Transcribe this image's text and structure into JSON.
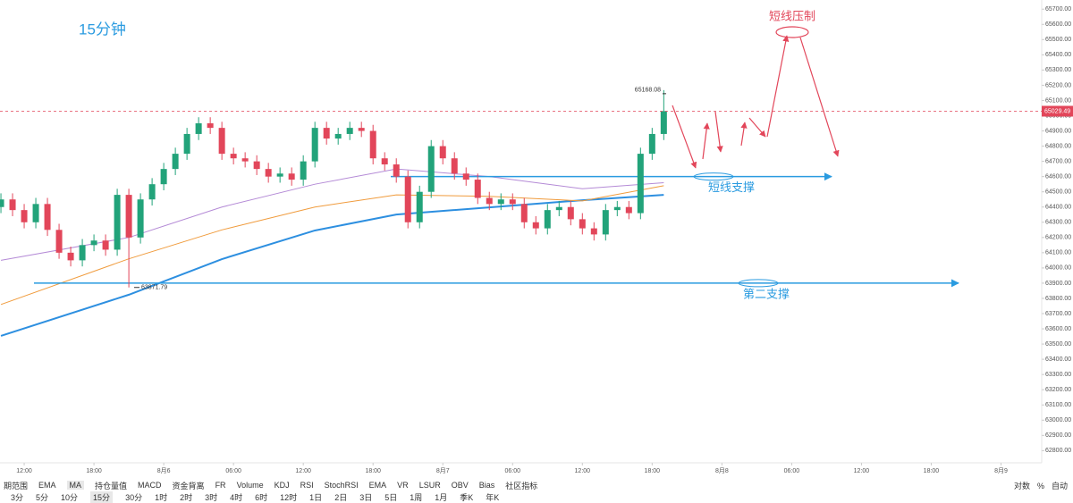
{
  "chart_data": {
    "type": "candlestick",
    "title": "15分钟",
    "x": [
      -2,
      -1,
      0,
      1,
      2,
      3,
      4,
      5,
      6,
      7,
      8,
      9,
      10,
      11,
      12,
      13,
      14,
      15,
      16,
      17,
      18,
      19,
      20,
      21,
      22,
      23,
      24,
      25,
      26,
      27,
      28,
      29,
      30,
      31,
      32,
      33,
      34,
      35,
      36,
      37,
      38,
      39,
      40,
      41,
      42,
      43,
      44,
      45,
      46,
      47,
      48,
      49,
      50,
      51,
      52,
      53,
      54,
      55
    ],
    "open": [
      64400,
      64450,
      64380,
      64300,
      64420,
      64250,
      64100,
      64050,
      64150,
      64180,
      64120,
      64480,
      64200,
      64450,
      64550,
      64650,
      64750,
      64880,
      64950,
      64920,
      64750,
      64720,
      64700,
      64650,
      64600,
      64620,
      64580,
      64700,
      64920,
      64850,
      64880,
      64920,
      64900,
      64720,
      64680,
      64600,
      64300,
      64500,
      64800,
      64720,
      64620,
      64580,
      64460,
      64420,
      64450,
      64420,
      64300,
      64260,
      64380,
      64400,
      64320,
      64260,
      64220,
      64380,
      64400,
      64360,
      64750,
      64880
    ],
    "close": [
      64450,
      64380,
      64300,
      64420,
      64250,
      64100,
      64050,
      64150,
      64180,
      64120,
      64480,
      64200,
      64450,
      64550,
      64650,
      64750,
      64880,
      64950,
      64920,
      64750,
      64720,
      64700,
      64650,
      64600,
      64620,
      64580,
      64700,
      64920,
      64850,
      64880,
      64920,
      64900,
      64720,
      64680,
      64600,
      64300,
      64500,
      64800,
      64720,
      64620,
      64580,
      64460,
      64420,
      64450,
      64420,
      64300,
      64260,
      64380,
      64400,
      64320,
      64260,
      64220,
      64380,
      64400,
      64360,
      64750,
      64880,
      65030
    ],
    "high": [
      64490,
      64490,
      64420,
      64460,
      64460,
      64290,
      64140,
      64190,
      64220,
      64220,
      64520,
      64520,
      64490,
      64590,
      64690,
      64790,
      64920,
      64990,
      64990,
      64960,
      64790,
      64760,
      64740,
      64690,
      64660,
      64660,
      64740,
      64960,
      64960,
      64920,
      64960,
      64960,
      64940,
      64760,
      64720,
      64640,
      64540,
      64840,
      64840,
      64760,
      64660,
      64620,
      64500,
      64490,
      64490,
      64460,
      64340,
      64420,
      64440,
      64440,
      64360,
      64300,
      64420,
      64440,
      64440,
      64790,
      64920,
      65168.08
    ],
    "low": [
      64360,
      64340,
      64260,
      64260,
      64210,
      64060,
      64010,
      64010,
      64110,
      64080,
      64080,
      63871.79,
      64160,
      64410,
      64510,
      64610,
      64710,
      64840,
      64880,
      64710,
      64680,
      64660,
      64610,
      64560,
      64560,
      64540,
      64540,
      64660,
      64810,
      64810,
      64840,
      64860,
      64680,
      64640,
      64560,
      64260,
      64260,
      64460,
      64680,
      64580,
      64540,
      64420,
      64380,
      64380,
      64380,
      64260,
      64220,
      64220,
      64340,
      64280,
      64220,
      64180,
      64180,
      64340,
      64320,
      64320,
      64710,
      64840
    ],
    "up_color": "#22a37a",
    "down_color": "#e2465a",
    "ma_series": [
      {
        "color": "#2d8fe0",
        "x": [
          -2,
          9,
          17,
          25,
          32,
          40,
          48,
          55
        ],
        "values": [
          63554,
          63824,
          64058,
          64246,
          64351,
          64398,
          64445,
          64480
        ]
      },
      {
        "color": "#f09b3c",
        "x": [
          -2,
          9,
          17,
          25,
          32,
          40,
          48,
          55
        ],
        "values": [
          63760,
          64060,
          64250,
          64400,
          64480,
          64470,
          64440,
          64540
        ]
      },
      {
        "color": "#b48ad6",
        "x": [
          -2,
          9,
          17,
          25,
          32,
          40,
          48,
          55
        ],
        "values": [
          64050,
          64200,
          64400,
          64550,
          64650,
          64600,
          64520,
          64560
        ]
      }
    ],
    "xlim": [
      -2.08,
      87.5
    ],
    "xticks": [
      {
        "value": 0,
        "label": "12:00"
      },
      {
        "value": 6,
        "label": "18:00"
      },
      {
        "value": 12,
        "label": "8月6"
      },
      {
        "value": 18,
        "label": "06:00"
      },
      {
        "value": 24,
        "label": "12:00"
      },
      {
        "value": 30,
        "label": "18:00"
      },
      {
        "value": 36,
        "label": "8月7"
      },
      {
        "value": 42,
        "label": "06:00"
      },
      {
        "value": 48,
        "label": "12:00"
      },
      {
        "value": 54,
        "label": "18:00"
      },
      {
        "value": 60,
        "label": "8月8"
      },
      {
        "value": 66,
        "label": "06:00"
      },
      {
        "value": 72,
        "label": "12:00"
      },
      {
        "value": 78,
        "label": "18:00"
      },
      {
        "value": 84,
        "label": "8月9"
      }
    ],
    "ylim": [
      62720,
      65760
    ],
    "yticks": [
      {
        "value": 62800,
        "label": "62800.00"
      },
      {
        "value": 62900,
        "label": "62900.00"
      },
      {
        "value": 63000,
        "label": "63000.00"
      },
      {
        "value": 63100,
        "label": "63100.00"
      },
      {
        "value": 63200,
        "label": "63200.00"
      },
      {
        "value": 63300,
        "label": "63300.00"
      },
      {
        "value": 63400,
        "label": "63400.00"
      },
      {
        "value": 63500,
        "label": "63500.00"
      },
      {
        "value": 63600,
        "label": "63600.00"
      },
      {
        "value": 63700,
        "label": "63700.00"
      },
      {
        "value": 63800,
        "label": "63800.00"
      },
      {
        "value": 63900,
        "label": "63900.00"
      },
      {
        "value": 64000,
        "label": "64000.00"
      },
      {
        "value": 64100,
        "label": "64100.00"
      },
      {
        "value": 64200,
        "label": "64200.00"
      },
      {
        "value": 64300,
        "label": "64300.00"
      },
      {
        "value": 64400,
        "label": "64400.00"
      },
      {
        "value": 64500,
        "label": "64500.00"
      },
      {
        "value": 64600,
        "label": "64600.00"
      },
      {
        "value": 64700,
        "label": "64700.00"
      },
      {
        "value": 64800,
        "label": "64800.00"
      },
      {
        "value": 64900,
        "label": "64900.00"
      },
      {
        "value": 65000,
        "label": "65000.00"
      },
      {
        "value": 65100,
        "label": "65100.00"
      },
      {
        "value": 65200,
        "label": "65200.00"
      },
      {
        "value": 65300,
        "label": "65300.00"
      },
      {
        "value": 65400,
        "label": "65400.00"
      },
      {
        "value": 65500,
        "label": "65500.00"
      },
      {
        "value": 65600,
        "label": "65600.00"
      },
      {
        "value": 65700,
        "label": "65700.00"
      }
    ],
    "last_price": 65029.49,
    "last_price_color": "#e2465a",
    "high_label": 65168.08,
    "low_label": 63871.79,
    "resistance_text": "短线压制",
    "supports": [
      {
        "text": "短线支撑",
        "value": 64600,
        "color": "#2a9be0"
      },
      {
        "text": "第二支撑",
        "value": 63900,
        "color": "#2a9be0"
      }
    ]
  },
  "toolbar": {
    "range": "期范围",
    "indicators": [
      "EMA",
      "MA",
      "持仓量值",
      "MACD",
      "资金背离",
      "FR",
      "Volume",
      "KDJ",
      "RSI",
      "StochRSI",
      "EMA",
      "VR",
      "LSUR",
      "OBV",
      "Bias",
      "社区指标"
    ],
    "intervals": [
      "3分",
      "5分",
      "10分",
      "15分",
      "30分",
      "1时",
      "2时",
      "3时",
      "4时",
      "6时",
      "12时",
      "1日",
      "2日",
      "3日",
      "5日",
      "1周",
      "1月",
      "季K",
      "年K"
    ],
    "scale_options": [
      "对数",
      "%",
      "自动"
    ]
  }
}
